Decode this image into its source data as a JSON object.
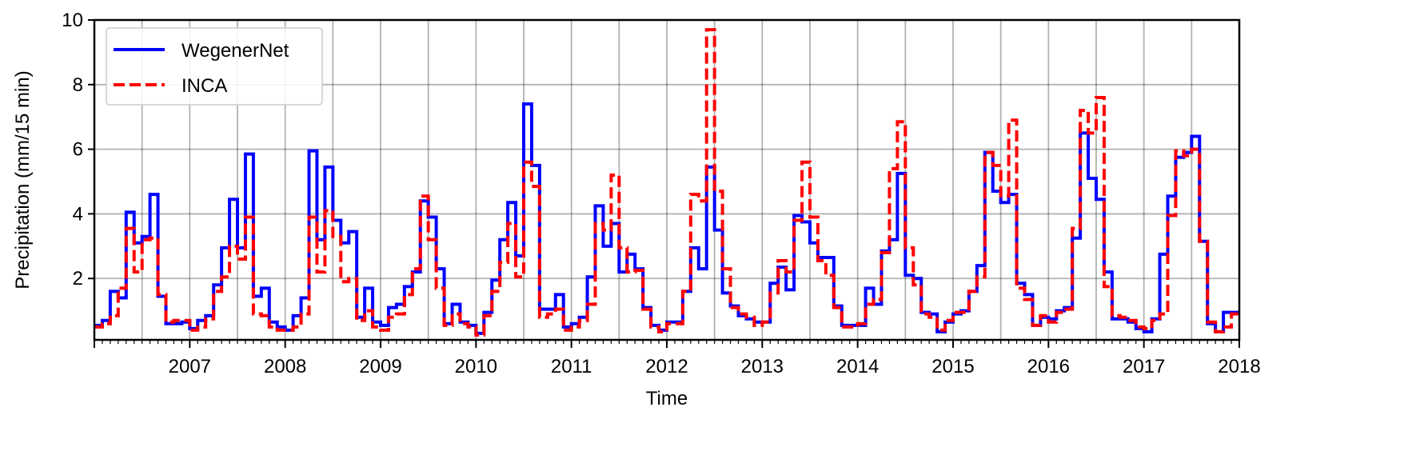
{
  "chart_data": {
    "type": "line",
    "step": true,
    "xlabel": "Time",
    "ylabel": "Precipitation (mm/15 min)",
    "xlim": [
      "2006-07",
      "2018-07"
    ],
    "ylim": [
      0.1,
      10
    ],
    "yticks": [
      2,
      4,
      6,
      8,
      10
    ],
    "xtick_labels": [
      "2007",
      "2008",
      "2009",
      "2010",
      "2011",
      "2012",
      "2013",
      "2014",
      "2015",
      "2016",
      "2017",
      "2018"
    ],
    "grid": true,
    "legend_position": "top-left",
    "months": [
      "2006-07",
      "2006-08",
      "2006-09",
      "2006-10",
      "2006-11",
      "2006-12",
      "2007-01",
      "2007-02",
      "2007-03",
      "2007-04",
      "2007-05",
      "2007-06",
      "2007-07",
      "2007-08",
      "2007-09",
      "2007-10",
      "2007-11",
      "2007-12",
      "2008-01",
      "2008-02",
      "2008-03",
      "2008-04",
      "2008-05",
      "2008-06",
      "2008-07",
      "2008-08",
      "2008-09",
      "2008-10",
      "2008-11",
      "2008-12",
      "2009-01",
      "2009-02",
      "2009-03",
      "2009-04",
      "2009-05",
      "2009-06",
      "2009-07",
      "2009-08",
      "2009-09",
      "2009-10",
      "2009-11",
      "2009-12",
      "2010-01",
      "2010-02",
      "2010-03",
      "2010-04",
      "2010-05",
      "2010-06",
      "2010-07",
      "2010-08",
      "2010-09",
      "2010-10",
      "2010-11",
      "2010-12",
      "2011-01",
      "2011-02",
      "2011-03",
      "2011-04",
      "2011-05",
      "2011-06",
      "2011-07",
      "2011-08",
      "2011-09",
      "2011-10",
      "2011-11",
      "2011-12",
      "2012-01",
      "2012-02",
      "2012-03",
      "2012-04",
      "2012-05",
      "2012-06",
      "2012-07",
      "2012-08",
      "2012-09",
      "2012-10",
      "2012-11",
      "2012-12",
      "2013-01",
      "2013-02",
      "2013-03",
      "2013-04",
      "2013-05",
      "2013-06",
      "2013-07",
      "2013-08",
      "2013-09",
      "2013-10",
      "2013-11",
      "2013-12",
      "2014-01",
      "2014-02",
      "2014-03",
      "2014-04",
      "2014-05",
      "2014-06",
      "2014-07",
      "2014-08",
      "2014-09",
      "2014-10",
      "2014-11",
      "2014-12",
      "2015-01",
      "2015-02",
      "2015-03",
      "2015-04",
      "2015-05",
      "2015-06",
      "2015-07",
      "2015-08",
      "2015-09",
      "2015-10",
      "2015-11",
      "2015-12",
      "2016-01",
      "2016-02",
      "2016-03",
      "2016-04",
      "2016-05",
      "2016-06",
      "2016-07",
      "2016-08",
      "2016-09",
      "2016-10",
      "2016-11",
      "2016-12",
      "2017-01",
      "2017-02",
      "2017-03",
      "2017-04",
      "2017-05",
      "2017-06",
      "2017-07",
      "2017-08",
      "2017-09",
      "2017-10",
      "2017-11",
      "2017-12",
      "2018-01",
      "2018-02",
      "2018-03",
      "2018-04",
      "2018-05",
      "2018-06"
    ],
    "series": [
      {
        "name": "WegenerNet",
        "color": "#0000ff",
        "dash": "solid",
        "values": [
          0.55,
          0.7,
          1.6,
          1.4,
          4.05,
          3.1,
          3.3,
          4.6,
          1.45,
          0.6,
          0.6,
          0.65,
          0.45,
          0.7,
          0.85,
          1.8,
          2.95,
          4.45,
          2.95,
          5.85,
          1.45,
          1.7,
          0.65,
          0.5,
          0.4,
          0.85,
          1.4,
          5.95,
          3.2,
          5.45,
          3.8,
          3.1,
          3.45,
          0.8,
          1.7,
          0.65,
          0.55,
          1.1,
          1.2,
          1.75,
          2.2,
          4.4,
          3.9,
          2.3,
          0.6,
          1.2,
          0.65,
          0.55,
          0.3,
          0.95,
          1.95,
          3.2,
          4.35,
          2.7,
          7.4,
          5.5,
          1.05,
          1.05,
          1.5,
          0.5,
          0.6,
          0.8,
          2.05,
          4.25,
          3.0,
          3.7,
          2.2,
          2.75,
          2.3,
          1.1,
          0.55,
          0.4,
          0.65,
          0.65,
          1.6,
          2.95,
          2.3,
          5.45,
          3.5,
          1.55,
          1.15,
          0.85,
          0.75,
          0.65,
          0.65,
          1.85,
          2.35,
          1.65,
          3.95,
          3.75,
          3.1,
          2.65,
          2.65,
          1.15,
          0.55,
          0.55,
          0.55,
          1.7,
          1.2,
          2.85,
          3.2,
          5.25,
          2.1,
          2.0,
          0.95,
          0.9,
          0.35,
          0.65,
          0.9,
          1.0,
          1.6,
          2.4,
          5.9,
          4.7,
          4.35,
          4.6,
          1.85,
          1.5,
          0.55,
          0.8,
          0.75,
          1.0,
          1.1,
          3.25,
          6.5,
          5.1,
          4.45,
          2.2,
          0.75,
          0.75,
          0.65,
          0.45,
          0.35,
          0.75,
          2.75,
          4.55,
          5.75,
          5.9,
          6.4,
          3.15,
          0.6,
          0.35,
          0.95,
          0.95
        ]
      },
      {
        "name": "INCA",
        "color": "#ff0000",
        "dash": "dashed",
        "values": [
          0.5,
          0.6,
          0.85,
          1.7,
          3.55,
          2.2,
          3.2,
          3.25,
          1.5,
          0.65,
          0.7,
          0.7,
          0.4,
          0.5,
          0.75,
          1.6,
          2.05,
          3.0,
          2.6,
          3.9,
          0.9,
          0.85,
          0.5,
          0.4,
          0.4,
          0.5,
          0.9,
          3.9,
          2.2,
          4.1,
          3.3,
          1.9,
          2.0,
          0.7,
          1.0,
          0.5,
          0.4,
          0.8,
          0.9,
          1.5,
          2.3,
          4.55,
          3.2,
          1.7,
          0.55,
          0.9,
          0.6,
          0.5,
          0.25,
          0.85,
          1.6,
          2.5,
          3.7,
          2.05,
          5.6,
          4.85,
          0.8,
          0.9,
          1.05,
          0.4,
          0.5,
          0.7,
          1.2,
          3.7,
          3.5,
          5.2,
          2.95,
          2.2,
          2.25,
          1.05,
          0.5,
          0.35,
          0.6,
          0.6,
          1.6,
          4.6,
          4.4,
          9.7,
          4.7,
          2.3,
          1.1,
          0.9,
          0.8,
          0.55,
          0.65,
          1.55,
          2.55,
          2.2,
          3.8,
          5.6,
          3.9,
          2.55,
          2.1,
          1.1,
          0.5,
          0.5,
          0.6,
          1.2,
          1.35,
          2.8,
          5.4,
          6.85,
          2.95,
          1.8,
          0.9,
          0.8,
          0.4,
          0.7,
          0.95,
          0.95,
          1.6,
          2.05,
          5.9,
          5.5,
          4.55,
          6.9,
          1.7,
          1.35,
          0.55,
          0.85,
          0.65,
          0.95,
          1.05,
          3.55,
          7.2,
          6.5,
          7.6,
          1.75,
          0.85,
          0.8,
          0.7,
          0.5,
          0.45,
          0.7,
          0.9,
          3.95,
          5.95,
          5.8,
          6.0,
          3.15,
          0.65,
          0.35,
          0.5,
          0.9
        ]
      }
    ]
  }
}
